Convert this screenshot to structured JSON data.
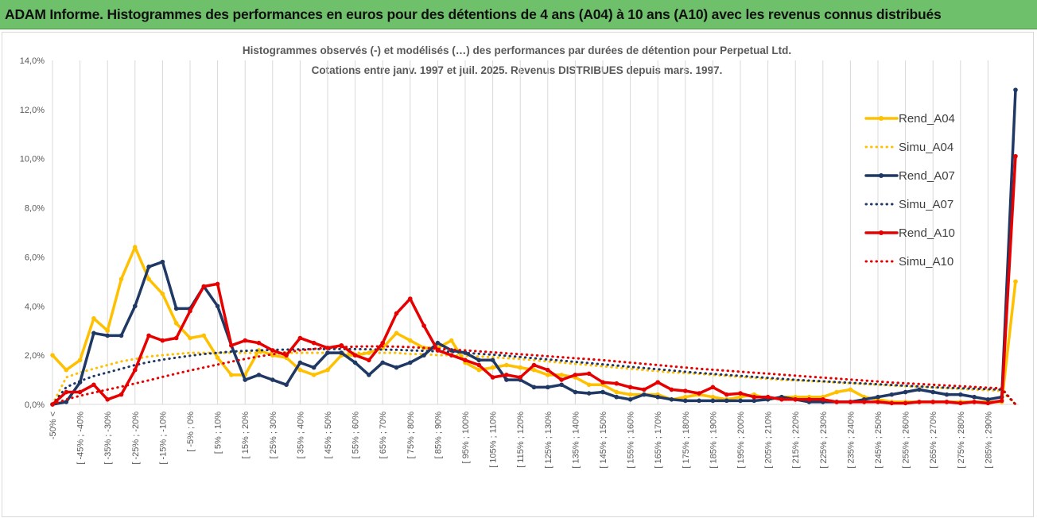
{
  "header": {
    "title": "ADAM Informe. Histogrammes des performances en euros pour des détentions de 4 ans (A04) à 10 ans (A10) avec les revenus connus distribués"
  },
  "chart_data": {
    "type": "line",
    "title_line1": "Histogrammes observés (-) et modélisés (…) des performances par durées de détention pour Perpetual Ltd.",
    "title_line2": "Cotations entre janv. 1997 et juil. 2025. Revenus DISTRIBUES depuis mars. 1997.",
    "ylim": [
      0,
      14
    ],
    "y_ticks": [
      "0,0%",
      "2,0%",
      "4,0%",
      "6,0%",
      "8,0%",
      "10,0%",
      "12,0%",
      "14,0%"
    ],
    "y_tick_values": [
      0,
      2,
      4,
      6,
      8,
      10,
      12,
      14
    ],
    "x_count": 71,
    "x_tick_labels": [
      "-50% <",
      "[ -45% ; -40%",
      "[ -35% ; -30%",
      "[ -25% ; -20%",
      "[ -15% ; -10%",
      "[ -5% ; 0%",
      "[ 5% ; 10%",
      "[ 15% ; 20%",
      "[ 25% ; 30%",
      "[ 35% ; 40%",
      "[ 45% ; 50%",
      "[ 55% ; 60%",
      "[ 65% ; 70%",
      "[ 75% ; 80%",
      "[ 85% ; 90%",
      "[ 95% ; 100%",
      "[ 105% ; 110%",
      "[ 115% ; 120%",
      "[ 125% ; 130%",
      "[ 135% ; 140%",
      "[ 145% ; 150%",
      "[ 155% ; 160%",
      "[ 165% ; 170%",
      "[ 175% ; 180%",
      "[ 185% ; 190%",
      "[ 195% ; 200%",
      "[ 205% ; 210%",
      "[ 215% ; 220%",
      "[ 225% ; 230%",
      "[ 235% ; 240%",
      "[ 245% ; 250%",
      "[ 255% ; 260%",
      "[ 265% ; 270%",
      "[ 275% ; 280%",
      "[ 285% ; 290%"
    ],
    "x_tick_indices": [
      0,
      2,
      4,
      6,
      8,
      10,
      12,
      14,
      16,
      18,
      20,
      22,
      24,
      26,
      28,
      30,
      32,
      34,
      36,
      38,
      40,
      42,
      44,
      46,
      48,
      50,
      52,
      54,
      56,
      58,
      60,
      62,
      64,
      66,
      68
    ],
    "grid": "vertical",
    "legend_position": "right",
    "series": [
      {
        "name": "Rend_A04",
        "color": "#ffc000",
        "style": "solid",
        "marker": true,
        "values": [
          2.0,
          1.4,
          1.8,
          3.5,
          3.0,
          5.1,
          6.4,
          5.1,
          4.5,
          3.3,
          2.7,
          2.8,
          1.9,
          1.2,
          1.2,
          2.2,
          2.0,
          1.9,
          1.4,
          1.2,
          1.4,
          2.0,
          2.0,
          2.1,
          2.3,
          2.9,
          2.6,
          2.3,
          2.3,
          2.6,
          1.7,
          1.4,
          1.5,
          1.6,
          1.5,
          1.4,
          1.2,
          1.2,
          1.1,
          0.8,
          0.8,
          0.5,
          0.4,
          0.4,
          0.4,
          0.2,
          0.3,
          0.4,
          0.3,
          0.2,
          0.3,
          0.4,
          0.2,
          0.3,
          0.3,
          0.3,
          0.3,
          0.5,
          0.6,
          0.3,
          0.2,
          0.1,
          0.1,
          0.1,
          0.1,
          0.1,
          0.1,
          0.1,
          0.1,
          0.1,
          5.0
        ]
      },
      {
        "name": "Simu_A04",
        "color": "#ffc000",
        "style": "dotted",
        "marker": false,
        "values": [
          0.0,
          1.1,
          1.3,
          1.45,
          1.6,
          1.75,
          1.85,
          1.95,
          2.0,
          2.05,
          2.1,
          2.1,
          2.1,
          2.1,
          2.1,
          2.1,
          2.1,
          2.1,
          2.1,
          2.1,
          2.1,
          2.1,
          2.1,
          2.1,
          2.1,
          2.1,
          2.05,
          2.05,
          2.0,
          2.0,
          1.98,
          1.95,
          1.92,
          1.88,
          1.85,
          1.8,
          1.75,
          1.7,
          1.65,
          1.6,
          1.55,
          1.5,
          1.45,
          1.4,
          1.35,
          1.3,
          1.28,
          1.24,
          1.2,
          1.16,
          1.12,
          1.08,
          1.04,
          1.0,
          0.98,
          0.95,
          0.92,
          0.89,
          0.86,
          0.83,
          0.8,
          0.77,
          0.74,
          0.72,
          0.69,
          0.66,
          0.63,
          0.6,
          0.58,
          0.55,
          0.0
        ]
      },
      {
        "name": "Rend_A07",
        "color": "#1f3864",
        "style": "solid",
        "marker": true,
        "values": [
          0.0,
          0.1,
          0.9,
          2.9,
          2.8,
          2.8,
          4.0,
          5.6,
          5.8,
          3.9,
          3.9,
          4.8,
          4.0,
          2.4,
          1.0,
          1.2,
          1.0,
          0.8,
          1.7,
          1.5,
          2.1,
          2.1,
          1.7,
          1.2,
          1.7,
          1.5,
          1.7,
          2.0,
          2.5,
          2.2,
          2.1,
          1.8,
          1.8,
          1.0,
          1.0,
          0.7,
          0.7,
          0.8,
          0.5,
          0.45,
          0.5,
          0.3,
          0.2,
          0.4,
          0.3,
          0.2,
          0.15,
          0.15,
          0.15,
          0.15,
          0.15,
          0.15,
          0.2,
          0.3,
          0.2,
          0.1,
          0.1,
          0.1,
          0.1,
          0.2,
          0.3,
          0.4,
          0.5,
          0.6,
          0.5,
          0.4,
          0.4,
          0.3,
          0.2,
          0.3,
          12.8
        ]
      },
      {
        "name": "Simu_A07",
        "color": "#1f3864",
        "style": "dotted",
        "marker": false,
        "values": [
          0.0,
          0.7,
          0.95,
          1.15,
          1.3,
          1.45,
          1.6,
          1.72,
          1.82,
          1.9,
          1.98,
          2.05,
          2.1,
          2.15,
          2.18,
          2.2,
          2.22,
          2.23,
          2.24,
          2.25,
          2.25,
          2.25,
          2.25,
          2.24,
          2.23,
          2.22,
          2.2,
          2.18,
          2.16,
          2.14,
          2.1,
          2.06,
          2.02,
          1.98,
          1.93,
          1.88,
          1.83,
          1.78,
          1.73,
          1.68,
          1.63,
          1.58,
          1.53,
          1.48,
          1.43,
          1.38,
          1.33,
          1.28,
          1.24,
          1.2,
          1.16,
          1.12,
          1.08,
          1.04,
          1.0,
          0.97,
          0.94,
          0.91,
          0.88,
          0.85,
          0.82,
          0.79,
          0.76,
          0.73,
          0.7,
          0.68,
          0.66,
          0.64,
          0.62,
          0.6,
          0.0
        ]
      },
      {
        "name": "Rend_A10",
        "color": "#e60000",
        "style": "solid",
        "marker": true,
        "values": [
          0.0,
          0.5,
          0.5,
          0.8,
          0.2,
          0.4,
          1.4,
          2.8,
          2.6,
          2.7,
          3.8,
          4.8,
          4.9,
          2.4,
          2.6,
          2.5,
          2.2,
          2.0,
          2.7,
          2.5,
          2.3,
          2.4,
          2.0,
          1.8,
          2.5,
          3.7,
          4.3,
          3.2,
          2.2,
          2.0,
          1.8,
          1.6,
          1.1,
          1.2,
          1.1,
          1.6,
          1.4,
          1.0,
          1.2,
          1.25,
          0.9,
          0.85,
          0.7,
          0.6,
          0.9,
          0.6,
          0.55,
          0.45,
          0.7,
          0.4,
          0.45,
          0.3,
          0.3,
          0.2,
          0.2,
          0.2,
          0.2,
          0.1,
          0.1,
          0.1,
          0.1,
          0.05,
          0.05,
          0.1,
          0.1,
          0.1,
          0.05,
          0.1,
          0.05,
          0.15,
          10.1
        ]
      },
      {
        "name": "Simu_A10",
        "color": "#e60000",
        "style": "dotted",
        "marker": false,
        "values": [
          0.0,
          0.2,
          0.35,
          0.48,
          0.6,
          0.72,
          0.85,
          0.98,
          1.12,
          1.25,
          1.38,
          1.5,
          1.62,
          1.74,
          1.85,
          1.95,
          2.04,
          2.12,
          2.2,
          2.26,
          2.3,
          2.33,
          2.35,
          2.36,
          2.36,
          2.35,
          2.33,
          2.3,
          2.26,
          2.23,
          2.2,
          2.16,
          2.12,
          2.08,
          2.04,
          2.0,
          1.96,
          1.92,
          1.88,
          1.84,
          1.8,
          1.75,
          1.7,
          1.65,
          1.6,
          1.55,
          1.5,
          1.45,
          1.41,
          1.37,
          1.33,
          1.29,
          1.25,
          1.21,
          1.17,
          1.13,
          1.09,
          1.05,
          1.01,
          0.97,
          0.93,
          0.89,
          0.86,
          0.83,
          0.8,
          0.77,
          0.74,
          0.71,
          0.68,
          0.65,
          0.0
        ]
      }
    ]
  }
}
